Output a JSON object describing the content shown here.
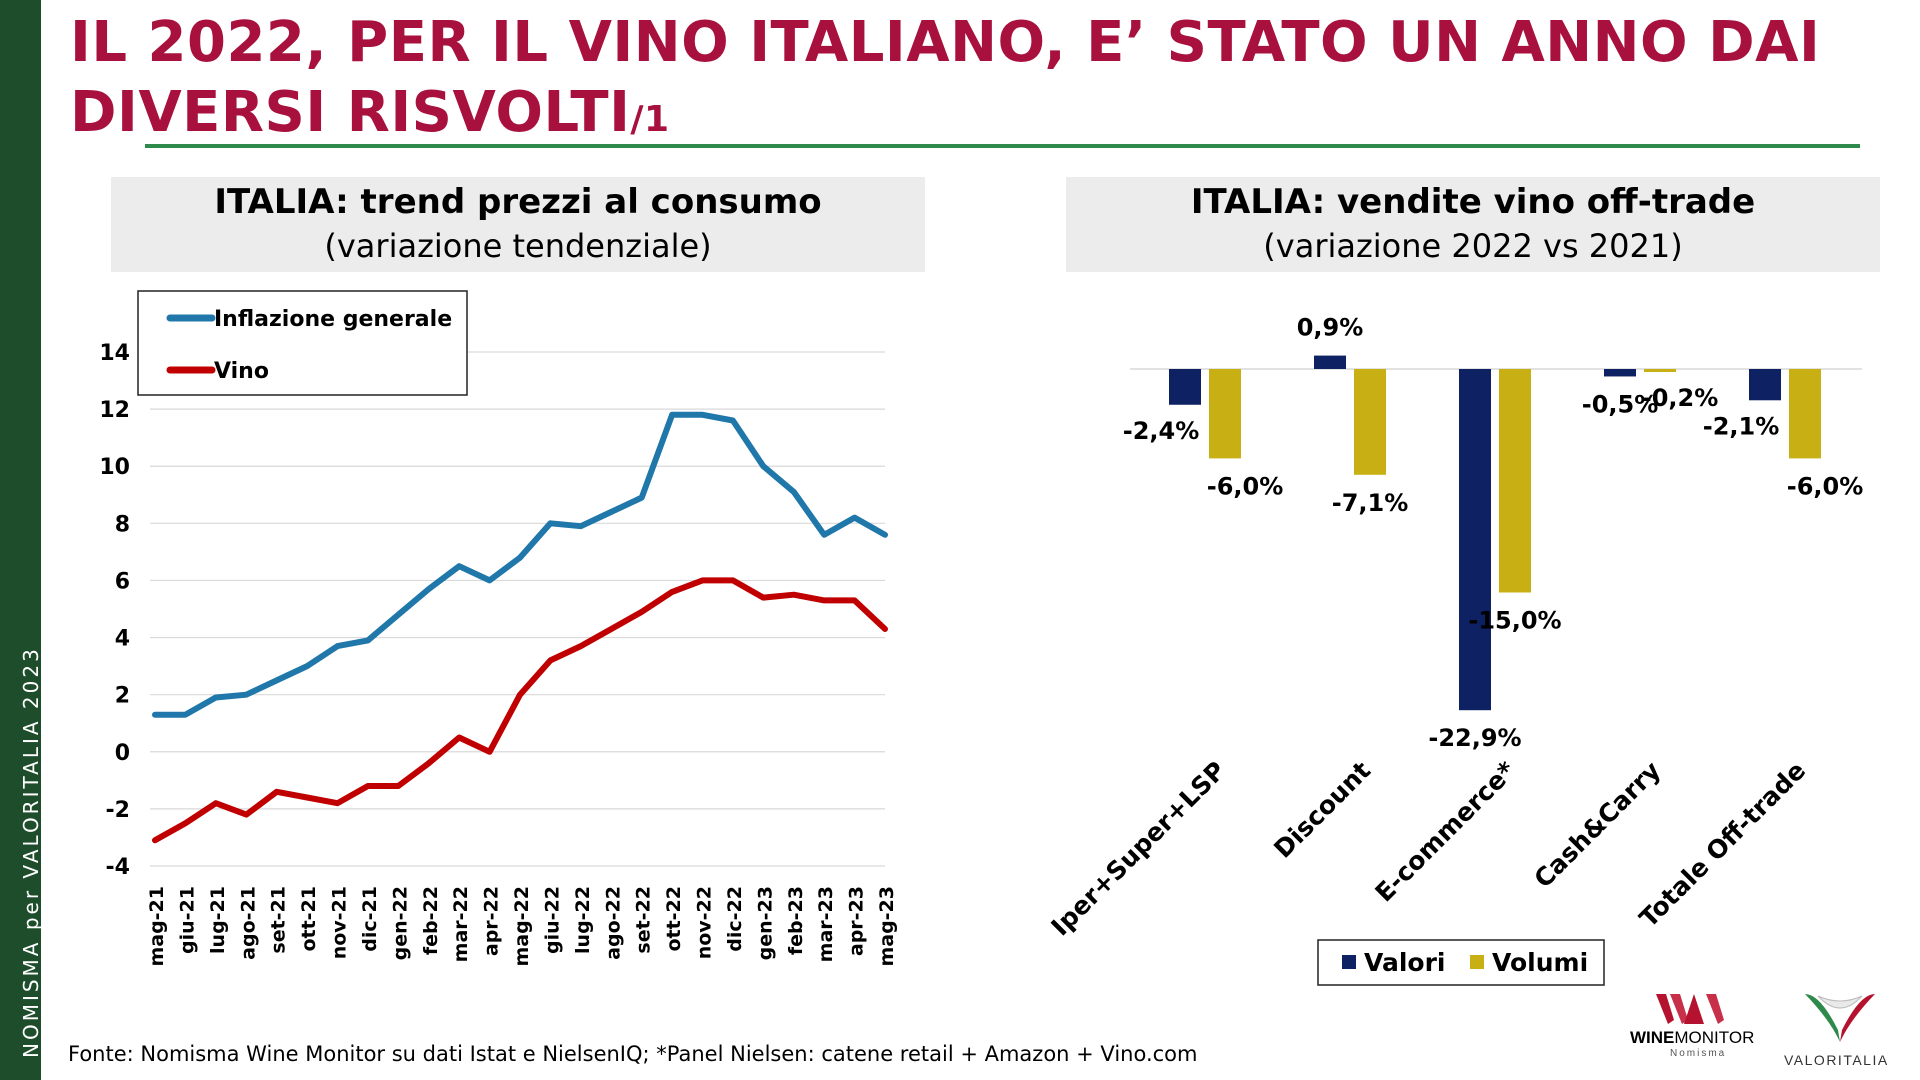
{
  "page": {
    "side_text": "NOMISMA per VALORITALIA 2023",
    "title_main": "IL 2022, PER IL VINO ITALIANO, E’ STATO UN ANNO DAI DIVERSI RISVOLTI",
    "title_suffix": "/1",
    "footer": "Fonte: Nomisma Wine Monitor su dati Istat e NielsenIQ; *Panel Nielsen: catene retail + Amazon + Vino.com",
    "logo_winemonitor_a": "WINE",
    "logo_winemonitor_b": "MONITOR",
    "logo_winemonitor_sub": "Nomisma",
    "logo_valoritalia": "VALORITALIA",
    "colors": {
      "title": "#a8103e",
      "sidebar": "#1e4d2b",
      "rule": "#2e8a4a"
    }
  },
  "chart_data": [
    {
      "type": "line",
      "title": "ITALIA: trend prezzi al consumo",
      "subtitle": "(variazione tendenziale)",
      "x": [
        "mag-21",
        "giu-21",
        "lug-21",
        "ago-21",
        "set-21",
        "ott-21",
        "nov-21",
        "dic-21",
        "gen-22",
        "feb-22",
        "mar-22",
        "apr-22",
        "mag-22",
        "giu-22",
        "lug-22",
        "ago-22",
        "set-22",
        "ott-22",
        "nov-22",
        "dic-22",
        "gen-23",
        "feb-23",
        "mar-23",
        "apr-23",
        "mag-23"
      ],
      "series": [
        {
          "name": "Inflazione generale",
          "color": "#1f77aa",
          "values": [
            1.3,
            1.3,
            1.9,
            2.0,
            2.5,
            3.0,
            3.7,
            3.9,
            4.8,
            5.7,
            6.5,
            6.0,
            6.8,
            8.0,
            7.9,
            8.4,
            8.9,
            11.8,
            11.8,
            11.6,
            10.0,
            9.1,
            7.6,
            8.2,
            7.6
          ]
        },
        {
          "name": "Vino",
          "color": "#c00000",
          "values": [
            -3.1,
            -2.5,
            -1.8,
            -2.2,
            -1.4,
            -1.6,
            -1.8,
            -1.2,
            -1.2,
            -0.4,
            0.5,
            0.0,
            2.0,
            3.2,
            3.7,
            4.3,
            4.9,
            5.6,
            6.0,
            6.0,
            5.4,
            5.5,
            5.3,
            5.3,
            4.3
          ]
        }
      ],
      "ylim": [
        -4,
        14
      ],
      "yticks": [
        -4,
        -2,
        0,
        2,
        4,
        6,
        8,
        10,
        12,
        14
      ],
      "grid": true,
      "legend": "top-left"
    },
    {
      "type": "bar",
      "title": "ITALIA: vendite vino off-trade",
      "subtitle": "(variazione 2022 vs 2021)",
      "categories": [
        "Iper+Super+LSP",
        "Discount",
        "E-commerce*",
        "Cash&Carry",
        "Totale Off-trade"
      ],
      "series": [
        {
          "name": "Valori",
          "color": "#0d2163",
          "values": [
            -2.4,
            0.9,
            -22.9,
            -0.5,
            -2.1
          ],
          "labels": [
            "-2,4%",
            "0,9%",
            "-22,9%",
            "-0,5%",
            "-2,1%"
          ]
        },
        {
          "name": "Volumi",
          "color": "#c8b014",
          "values": [
            -6.0,
            -7.1,
            -15.0,
            -0.2,
            -6.0
          ],
          "labels": [
            "-6,0%",
            "-7,1%",
            "-15,0%",
            "-0,2%",
            "-6,0%"
          ]
        }
      ],
      "legend": "bottom"
    }
  ]
}
